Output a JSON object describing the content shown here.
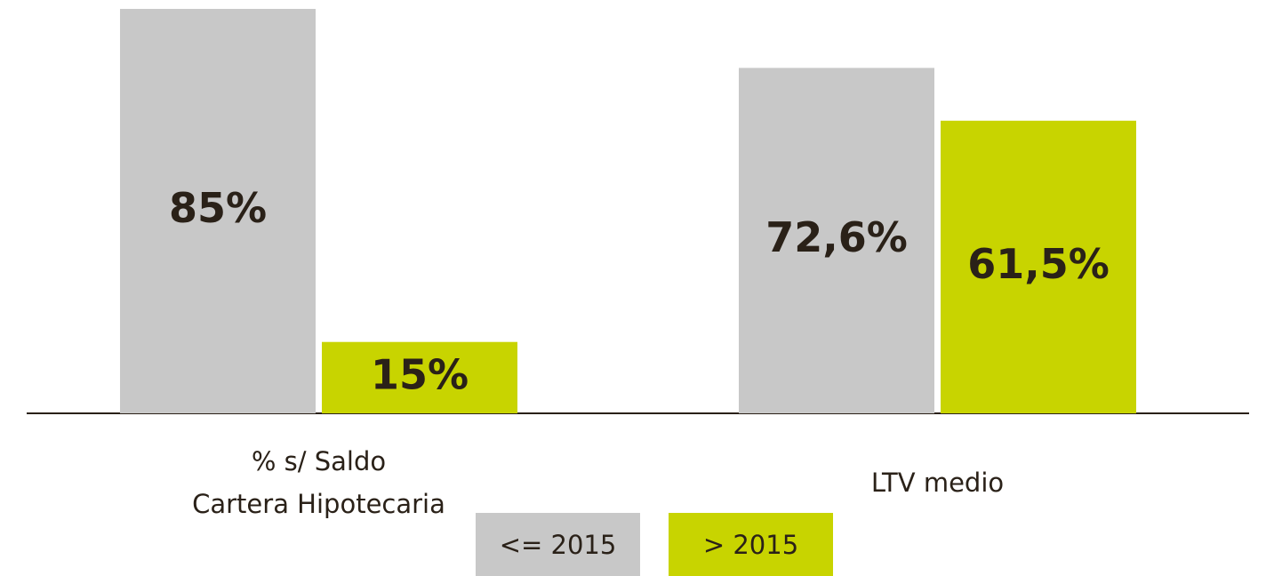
{
  "chart_data": {
    "type": "bar",
    "categories": [
      "% s/ Saldo\nCartera Hipotecaria",
      "LTV medio"
    ],
    "series": [
      {
        "name": "<= 2015",
        "color": "#c8c8c8",
        "values": [
          85,
          72.6
        ],
        "value_labels": [
          "85%",
          "72,6%"
        ]
      },
      {
        "name": "> 2015",
        "color": "#c8d400",
        "values": [
          15,
          61.5
        ],
        "value_labels": [
          "15%",
          "61,5%"
        ]
      }
    ]
  }
}
